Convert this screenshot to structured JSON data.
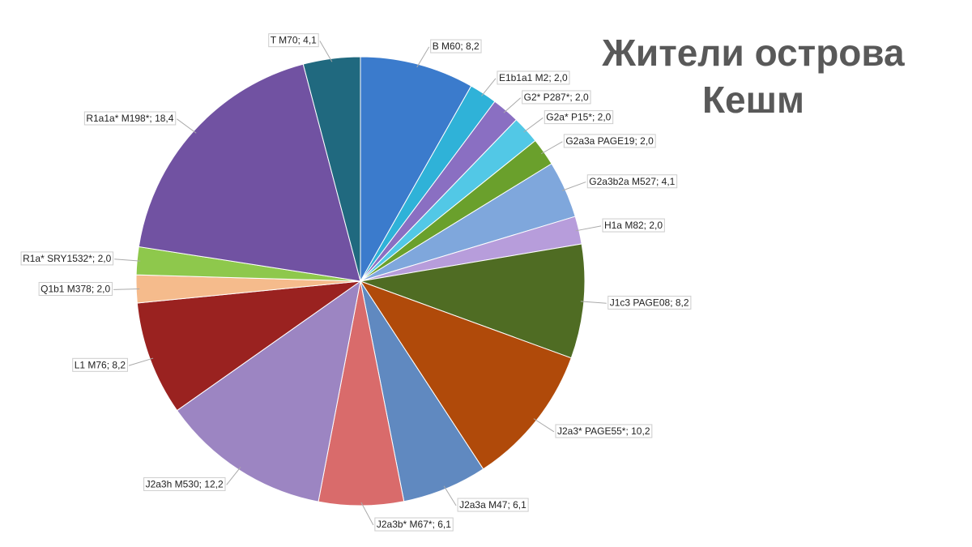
{
  "chart_data": {
    "type": "pie",
    "title": "Жители острова Кешм",
    "values": [
      8.2,
      2.0,
      2.0,
      2.0,
      2.0,
      4.1,
      2.0,
      8.2,
      10.2,
      6.1,
      6.1,
      12.2,
      8.2,
      2.0,
      2.0,
      18.4,
      4.1
    ],
    "value_labels": [
      "B M60; 8,2",
      "E1b1a1 M2; 2,0",
      "G2* P287*; 2,0",
      "G2a* P15*; 2,0",
      "G2a3a PAGE19; 2,0",
      "G2a3b2a M527; 4,1",
      "H1a M82; 2,0",
      "J1c3 PAGE08; 8,2",
      "J2a3* PAGE55*; 10,2",
      "J2a3a M47; 6,1",
      "J2a3b* M67*; 6,1",
      "J2a3h M530; 12,2",
      "L1 M76; 8,2",
      "Q1b1 M378; 2,0",
      "R1a* SRY1532*; 2,0",
      "R1a1a* M198*; 18,4",
      "T M70; 4,1"
    ],
    "colors": [
      "#3b7bcc",
      "#2fb2d8",
      "#8a6fc2",
      "#52c8e6",
      "#6aa02c",
      "#7fa7dc",
      "#b79ddb",
      "#4f6c23",
      "#b04a0a",
      "#6089c0",
      "#d96b6b",
      "#9c85c2",
      "#9a2220",
      "#f5bb8c",
      "#8ec84c",
      "#7152a2",
      "#20697f"
    ]
  }
}
